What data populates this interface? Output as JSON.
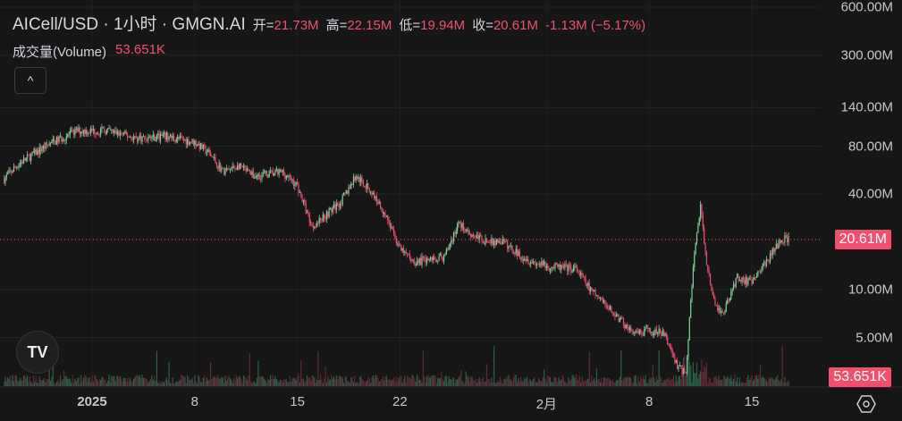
{
  "header": {
    "title": "AICell/USD · 1小时 · GMGN.AI",
    "open_label": "开=",
    "open": "21.73M",
    "high_label": "高=",
    "high": "22.15M",
    "low_label": "低=",
    "low": "19.94M",
    "close_label": "收=",
    "close": "20.61M",
    "change": "-1.13M (−5.17%)"
  },
  "volume": {
    "label": "成交量(Volume)",
    "value": "53.651K"
  },
  "collapse_icon": "^",
  "logo_text": "TV",
  "colors": {
    "up": "#7dcf9b",
    "down": "#e8506f",
    "tag": "#f0506e",
    "background": "#161616"
  },
  "chart_data": {
    "type": "candlestick",
    "y_scale": "log",
    "y_ticks": [
      "600.00M",
      "300.00M",
      "140.00M",
      "80.00M",
      "40.00M",
      "10.00M",
      "5.00M"
    ],
    "y_tick_values": [
      600,
      300,
      140,
      80,
      40,
      10,
      5
    ],
    "current_price_label": "20.61M",
    "current_price": 20.61,
    "current_volume_label": "53.651K",
    "x_ticks": [
      {
        "label": "2025",
        "day": 0,
        "bold": true
      },
      {
        "label": "8",
        "day": 7
      },
      {
        "label": "15",
        "day": 14
      },
      {
        "label": "22",
        "day": 21
      },
      {
        "label": "2月",
        "day": 31
      },
      {
        "label": "8",
        "day": 38
      },
      {
        "label": "15",
        "day": 45
      }
    ],
    "x_unit": "days since 2025-01-01",
    "price_path": [
      [
        -6,
        50
      ],
      [
        -5,
        62
      ],
      [
        -3,
        82
      ],
      [
        -1,
        100
      ],
      [
        1,
        100
      ],
      [
        3,
        90
      ],
      [
        5,
        92
      ],
      [
        7,
        85
      ],
      [
        8,
        72
      ],
      [
        9,
        55
      ],
      [
        10,
        60
      ],
      [
        11,
        52
      ],
      [
        13,
        55
      ],
      [
        14,
        45
      ],
      [
        15,
        25
      ],
      [
        16,
        30
      ],
      [
        17,
        36
      ],
      [
        18,
        52
      ],
      [
        19,
        42
      ],
      [
        20,
        30
      ],
      [
        21,
        18
      ],
      [
        22,
        15
      ],
      [
        23,
        15.5
      ],
      [
        24,
        16
      ],
      [
        25,
        26
      ],
      [
        26,
        22
      ],
      [
        27,
        20
      ],
      [
        28,
        20
      ],
      [
        29,
        17
      ],
      [
        30,
        15
      ],
      [
        31,
        14
      ],
      [
        33,
        13.5
      ],
      [
        34,
        10
      ],
      [
        35,
        8
      ],
      [
        36,
        6.5
      ],
      [
        37,
        5.2
      ],
      [
        38,
        5.5
      ],
      [
        39,
        5.3
      ],
      [
        40,
        3.2
      ],
      [
        40.5,
        3.0
      ],
      [
        41,
        14
      ],
      [
        41.5,
        33
      ],
      [
        42,
        13
      ],
      [
        42.5,
        8
      ],
      [
        43,
        7
      ],
      [
        44,
        12
      ],
      [
        45,
        11
      ],
      [
        46,
        15
      ],
      [
        47,
        21
      ],
      [
        47.5,
        20.61
      ]
    ]
  }
}
